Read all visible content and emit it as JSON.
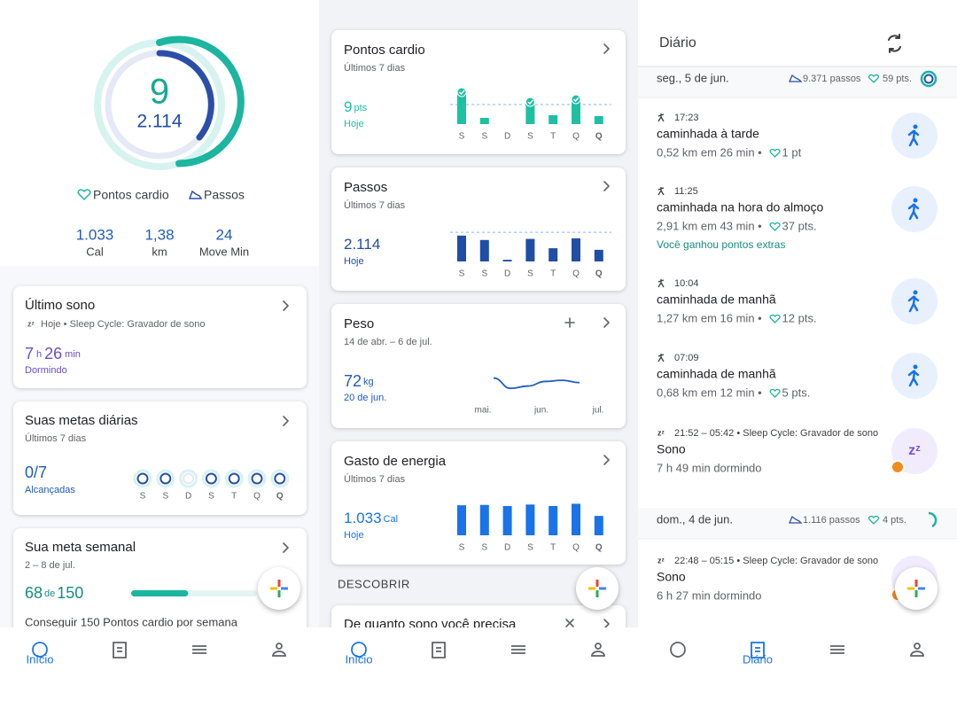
{
  "home": {
    "ring_points": "9",
    "ring_steps": "2.114",
    "legend": [
      "Pontos cardio",
      "Passos"
    ],
    "stats": [
      {
        "value": "1.033",
        "label": "Cal"
      },
      {
        "value": "1,38",
        "label": "km"
      },
      {
        "value": "24",
        "label": "Move Min"
      }
    ],
    "sleep": {
      "title": "Último sono",
      "source": "Hoje • Sleep Cycle: Gravador de sono",
      "hours": "7",
      "hours_unit": "h",
      "minutes": "26",
      "minutes_unit": "min",
      "label": "Dormindo"
    },
    "goals": {
      "title": "Suas metas diárias",
      "period": "Últimos 7 dias",
      "value": "0/7",
      "label": "Alcançadas"
    },
    "weekly": {
      "title": "Sua meta semanal",
      "period": "2 – 8 de jul.",
      "current": 68,
      "of": "de",
      "target": 150,
      "description": "Conseguir 150 Pontos cardio por semana"
    },
    "nav_label": "Início"
  },
  "days": [
    "S",
    "S",
    "D",
    "S",
    "T",
    "Q",
    "Q"
  ],
  "dashboard": {
    "cardio": {
      "title": "Pontos cardio",
      "period": "Últimos 7 dias",
      "today_value": "9",
      "today_unit": "pts",
      "today_label": "Hoje",
      "values": [
        36,
        7,
        0,
        25,
        10,
        28,
        9
      ],
      "goal": 22,
      "ylim": [
        0,
        36
      ],
      "color": "#1ec0a2"
    },
    "steps": {
      "title": "Passos",
      "period": "Últimos 7 dias",
      "today_value": "2.114",
      "today_label": "Hoje",
      "values": [
        4700,
        3900,
        300,
        4100,
        2400,
        4200,
        2114
      ],
      "goal": 5300,
      "ylim": [
        0,
        5800
      ],
      "color": "#1f4ea5"
    },
    "weight": {
      "title": "Peso",
      "period": "14 de abr. – 6 de jul.",
      "latest_value": "72",
      "latest_unit": "kg",
      "latest_date": "20 de jun.",
      "values": [
        72.6,
        71.7,
        71.9,
        72.3,
        72.4,
        72.2
      ],
      "ylim": [
        71.4,
        72.8
      ],
      "x_labels": [
        "mai.",
        "jun.",
        "jul."
      ],
      "color": "#1f5bbd"
    },
    "energy": {
      "title": "Gasto de energia",
      "period": "Últimos 7 dias",
      "today_value": "1.033",
      "today_unit": "Cal",
      "today_label": "Hoje",
      "values": [
        1600,
        1620,
        1560,
        1640,
        1560,
        1680,
        1033
      ],
      "ylim": [
        0,
        1700
      ],
      "color": "#1a73e8"
    },
    "discover_heading": "DESCOBRIR",
    "discover_title": "De quanto sono você precisa",
    "nav_label": "Início"
  },
  "journal": {
    "title": "Diário",
    "days": [
      {
        "date": "seg., 5 de jun.",
        "steps": "9.371 passos",
        "points": "59 pts.",
        "entries": [
          {
            "time": "17:23",
            "title": "caminhada à tarde",
            "detail": "0,52 km em 26 min •",
            "points": "1 pt"
          },
          {
            "time": "11:25",
            "title": "caminhada na hora do almoço",
            "detail": "2,91 km em 43 min •",
            "points": "37 pts.",
            "extra": "Você ganhou pontos extras"
          },
          {
            "time": "10:04",
            "title": "caminhada de manhã",
            "detail": "1,27 km em 16 min •",
            "points": "12 pts."
          },
          {
            "time": "07:09",
            "title": "caminhada de manhã",
            "detail": "0,68 km em 12 min •",
            "points": "5 pts."
          },
          {
            "time": "21:52 – 05:42 • Sleep Cycle: Gravador de sono",
            "title": "Sono",
            "detail": "7 h 49 min dormindo"
          }
        ]
      },
      {
        "date": "dom., 4 de jun.",
        "steps": "1.116 passos",
        "points": "4 pts.",
        "entries": [
          {
            "time": "22:48 – 05:15 • Sleep Cycle: Gravador de sono",
            "title": "Sono",
            "detail": "6 h 27 min dormindo"
          }
        ]
      }
    ],
    "nav_label": "Diário"
  }
}
